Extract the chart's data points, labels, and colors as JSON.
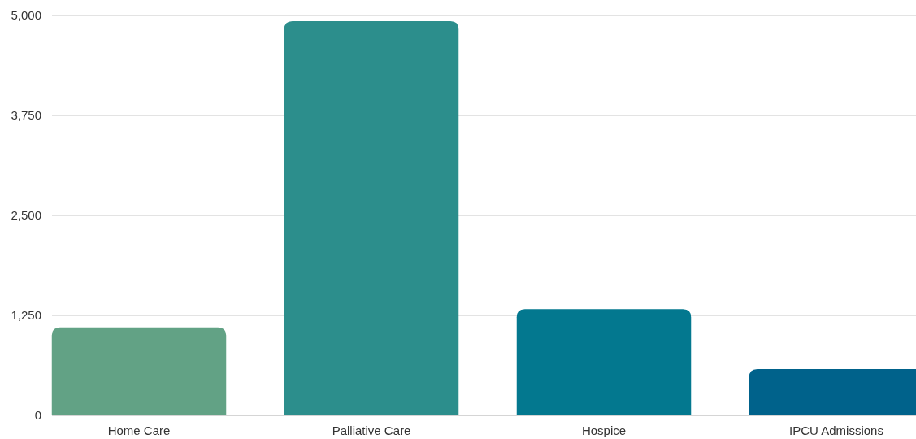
{
  "chart_data": {
    "type": "bar",
    "categories": [
      "Home Care",
      "Palliative Care",
      "Hospice",
      "IPCU Admissions"
    ],
    "values": [
      1100,
      4930,
      1330,
      580
    ],
    "colors": [
      "#62a285",
      "#2c8e8c",
      "#03788f",
      "#00628b"
    ],
    "ylim": [
      0,
      5000
    ],
    "yticks": [
      0,
      {
        "value": 1250,
        "label": "1,250"
      },
      {
        "value": 2500,
        "label": "2,500"
      },
      {
        "value": 3750,
        "label": "3,750"
      },
      {
        "value": 5000,
        "label": "5,000"
      }
    ],
    "grid": "y"
  }
}
